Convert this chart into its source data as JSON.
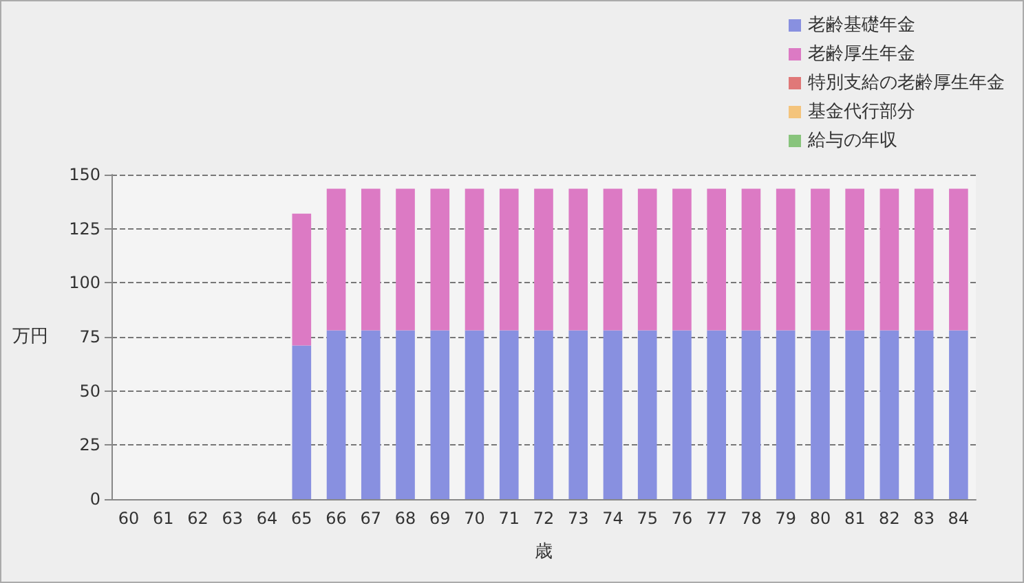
{
  "chart_data": {
    "type": "bar",
    "stacked": true,
    "xlabel": "歳",
    "ylabel": "万円",
    "categories": [
      "60",
      "61",
      "62",
      "63",
      "64",
      "65",
      "66",
      "67",
      "68",
      "69",
      "70",
      "71",
      "72",
      "73",
      "74",
      "75",
      "76",
      "77",
      "78",
      "79",
      "80",
      "81",
      "82",
      "83",
      "84"
    ],
    "series": [
      {
        "name": "老齢基礎年金",
        "color": "#8890e0",
        "values": [
          null,
          null,
          null,
          null,
          null,
          71,
          78,
          78,
          78,
          78,
          78,
          78,
          78,
          78,
          78,
          78,
          78,
          78,
          78,
          78,
          78,
          78,
          78,
          78,
          78
        ]
      },
      {
        "name": "老齢厚生年金",
        "color": "#dc7ac4",
        "values": [
          null,
          null,
          null,
          null,
          null,
          61,
          65.5,
          65.5,
          65.5,
          65.5,
          65.5,
          65.5,
          65.5,
          65.5,
          65.5,
          65.5,
          65.5,
          65.5,
          65.5,
          65.5,
          65.5,
          65.5,
          65.5,
          65.5,
          65.5
        ]
      },
      {
        "name": "特別支給の老齢厚生年金",
        "color": "#e07878",
        "values": [
          null,
          null,
          null,
          null,
          null,
          null,
          null,
          null,
          null,
          null,
          null,
          null,
          null,
          null,
          null,
          null,
          null,
          null,
          null,
          null,
          null,
          null,
          null,
          null,
          null
        ]
      },
      {
        "name": "基金代行部分",
        "color": "#f4c47c",
        "values": [
          null,
          null,
          null,
          null,
          null,
          null,
          null,
          null,
          null,
          null,
          null,
          null,
          null,
          null,
          null,
          null,
          null,
          null,
          null,
          null,
          null,
          null,
          null,
          null,
          null
        ]
      },
      {
        "name": "給与の年収",
        "color": "#88c47c",
        "values": [
          null,
          null,
          null,
          null,
          null,
          null,
          null,
          null,
          null,
          null,
          null,
          null,
          null,
          null,
          null,
          null,
          null,
          null,
          null,
          null,
          null,
          null,
          null,
          null,
          null
        ]
      }
    ],
    "ylim": [
      0,
      150
    ],
    "yticks": [
      0,
      25,
      50,
      75,
      100,
      125,
      150
    ],
    "grid": "y",
    "legend": "top right"
  }
}
